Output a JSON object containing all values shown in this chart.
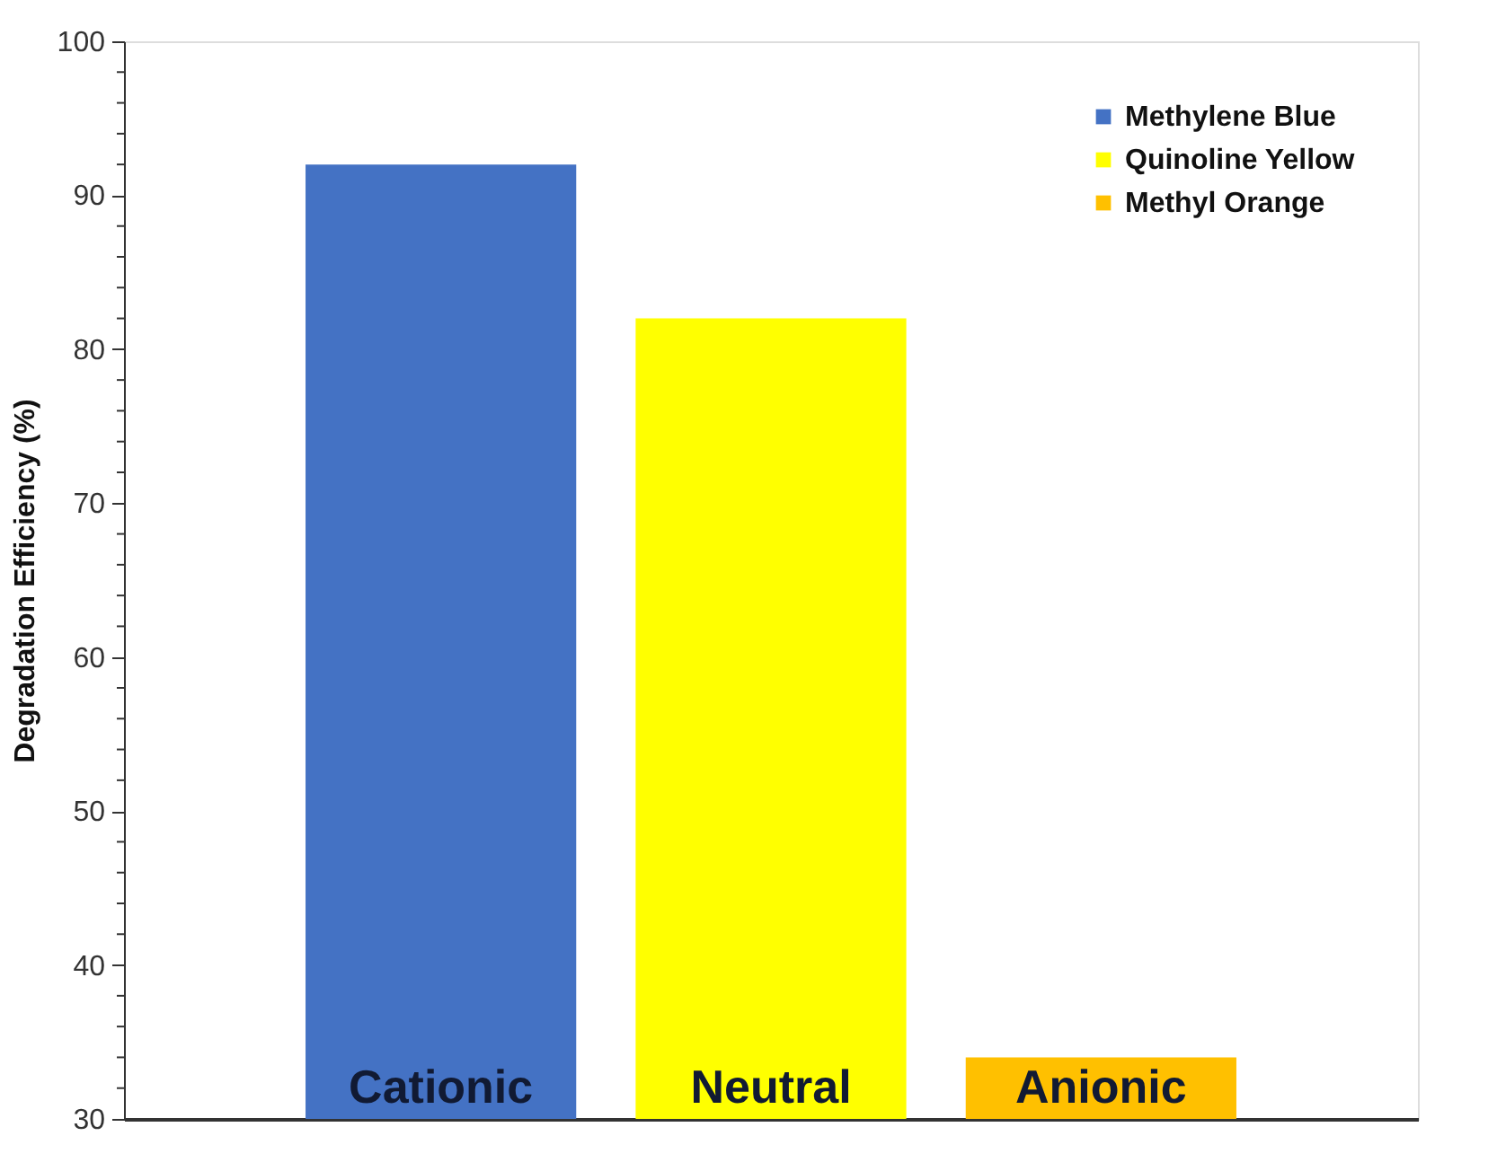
{
  "chart_data": {
    "type": "bar",
    "ylabel": "Degradation Efficiency (%)",
    "categories": [
      "Cationic",
      "Neutral",
      "Anionic"
    ],
    "series": [
      {
        "name": "Methylene Blue",
        "color": "#4472c4",
        "values": [
          92,
          null,
          null
        ]
      },
      {
        "name": "Quinoline Yellow",
        "color": "#ffff00",
        "values": [
          null,
          82,
          null
        ]
      },
      {
        "name": "Methyl Orange",
        "color": "#ffc000",
        "values": [
          null,
          null,
          34
        ]
      }
    ],
    "ylim": [
      30,
      100
    ],
    "yticks": [
      30,
      {
        "value": 32,
        "label": null
      },
      {
        "value": 34,
        "label": null
      },
      {
        "value": 36,
        "label": null
      },
      {
        "value": 38,
        "label": null
      },
      40,
      {
        "value": 42,
        "label": null
      },
      {
        "value": 44,
        "label": null
      },
      {
        "value": 46,
        "label": null
      },
      {
        "value": 48,
        "label": null
      },
      50,
      {
        "value": 52,
        "label": null
      },
      {
        "value": 54,
        "label": null
      },
      {
        "value": 56,
        "label": null
      },
      {
        "value": 58,
        "label": null
      },
      60,
      {
        "value": 62,
        "label": null
      },
      {
        "value": 64,
        "label": null
      },
      {
        "value": 66,
        "label": null
      },
      {
        "value": 68,
        "label": null
      },
      70,
      {
        "value": 72,
        "label": null
      },
      {
        "value": 74,
        "label": null
      },
      {
        "value": 76,
        "label": null
      },
      {
        "value": 78,
        "label": null
      },
      80,
      {
        "value": 82,
        "label": null
      },
      {
        "value": 84,
        "label": null
      },
      {
        "value": 86,
        "label": null
      },
      {
        "value": 88,
        "label": null
      },
      90,
      {
        "value": 92,
        "label": null
      },
      {
        "value": 94,
        "label": null
      },
      {
        "value": 96,
        "label": null
      },
      {
        "value": 98,
        "label": null
      },
      100
    ],
    "grid": false,
    "legend": "top right"
  }
}
